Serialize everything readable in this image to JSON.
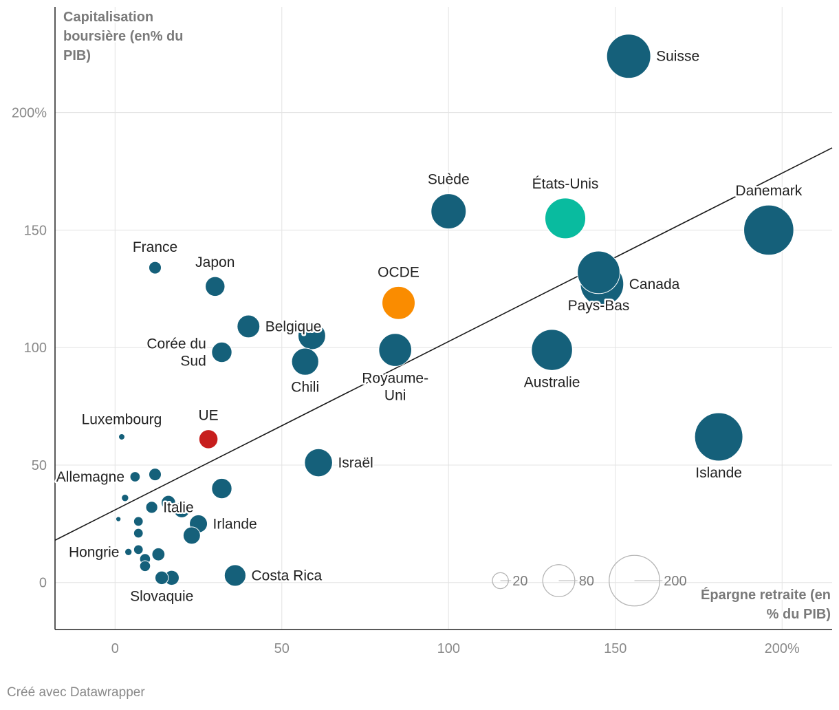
{
  "chart_data": {
    "type": "scatter",
    "subtype": "bubble",
    "ylabel": [
      "Capitalisation",
      "boursière (en% du",
      "PIB)"
    ],
    "xlabel": [
      "Épargne retraite (en",
      "% du PIB)"
    ],
    "xlim": [
      -18,
      215
    ],
    "ylim": [
      -20,
      245
    ],
    "x_ticks": [
      {
        "value": 0,
        "label": "0"
      },
      {
        "value": 50,
        "label": "50"
      },
      {
        "value": 100,
        "label": "100"
      },
      {
        "value": 150,
        "label": "150"
      },
      {
        "value": 200,
        "label": "200%"
      }
    ],
    "y_ticks": [
      {
        "value": 0,
        "label": "0"
      },
      {
        "value": 50,
        "label": "50"
      },
      {
        "value": 100,
        "label": "100"
      },
      {
        "value": 150,
        "label": "150"
      },
      {
        "value": 200,
        "label": "200%"
      }
    ],
    "size_legend": [
      {
        "value": 20,
        "label": "20"
      },
      {
        "value": 80,
        "label": "80"
      },
      {
        "value": 200,
        "label": "200"
      }
    ],
    "trendline": {
      "x": [
        -18,
        215
      ],
      "y": [
        18,
        185
      ]
    },
    "colors": {
      "default": "#15607a",
      "oecd": "#fa8c00",
      "usa": "#09bb9f",
      "eu": "#c71e1d"
    },
    "points": [
      {
        "name": "Suisse",
        "x": 154,
        "y": 224,
        "size": 151,
        "color": "default",
        "anchor": "start"
      },
      {
        "name": "Danemark",
        "x": 196,
        "y": 150,
        "size": 195,
        "color": "default",
        "anchor": "middle"
      },
      {
        "name": "Islande",
        "x": 181,
        "y": 62,
        "size": 181,
        "color": "default",
        "anchor": "middle"
      },
      {
        "name": "États-Unis",
        "x": 135,
        "y": 155,
        "size": 129,
        "color": "usa",
        "anchor": "middle"
      },
      {
        "name": "Pays-Bas",
        "x": 145,
        "y": 132,
        "size": 141,
        "color": "default",
        "anchor": "middle"
      },
      {
        "name": "Canada",
        "x": 146,
        "y": 127,
        "size": 146,
        "color": "default",
        "anchor": "start"
      },
      {
        "name": "Australie",
        "x": 131,
        "y": 99,
        "size": 131,
        "color": "default",
        "anchor": "middle"
      },
      {
        "name": "Suède",
        "x": 100,
        "y": 158,
        "size": 96,
        "color": "default",
        "anchor": "middle"
      },
      {
        "name": "OCDE",
        "x": 85,
        "y": 119,
        "size": 85,
        "color": "oecd",
        "anchor": "middle"
      },
      {
        "name": "Royaume-Uni",
        "x": 84,
        "y": 99,
        "size": 84,
        "color": "default",
        "anchor": "middle",
        "lines": [
          "Royaume-",
          "Uni"
        ]
      },
      {
        "name": "Belgique",
        "x": 40,
        "y": 109,
        "size": 40,
        "color": "default",
        "anchor": "start"
      },
      {
        "name": "",
        "x": 59,
        "y": 105,
        "size": 59,
        "color": "default"
      },
      {
        "name": "Chili",
        "x": 57,
        "y": 94,
        "size": 57,
        "color": "default",
        "anchor": "middle"
      },
      {
        "name": "Israël",
        "x": 61,
        "y": 51,
        "size": 61,
        "color": "default",
        "anchor": "start"
      },
      {
        "name": "Japon",
        "x": 30,
        "y": 126,
        "size": 30,
        "color": "default",
        "anchor": "middle"
      },
      {
        "name": "France",
        "x": 12,
        "y": 134,
        "size": 12,
        "color": "default",
        "anchor": "middle"
      },
      {
        "name": "Corée du Sud",
        "x": 32,
        "y": 98,
        "size": 32,
        "color": "default",
        "anchor": "end",
        "lines": [
          "Corée du",
          "Sud"
        ]
      },
      {
        "name": "UE",
        "x": 28,
        "y": 61,
        "size": 28,
        "color": "eu",
        "anchor": "middle"
      },
      {
        "name": "Luxembourg",
        "x": 2,
        "y": 62,
        "size": 3,
        "color": "default",
        "anchor": "middle"
      },
      {
        "name": "Allemagne",
        "x": 6,
        "y": 45,
        "size": 8,
        "color": "default",
        "anchor": "end"
      },
      {
        "name": "",
        "x": 12,
        "y": 46,
        "size": 12,
        "color": "default"
      },
      {
        "name": "",
        "x": 32,
        "y": 40,
        "size": 32,
        "color": "default"
      },
      {
        "name": "",
        "x": 3,
        "y": 36,
        "size": 4,
        "color": "default"
      },
      {
        "name": "",
        "x": 16,
        "y": 34,
        "size": 16,
        "color": "default"
      },
      {
        "name": "Italie",
        "x": 11,
        "y": 32,
        "size": 11,
        "color": "default",
        "anchor": "start"
      },
      {
        "name": "",
        "x": 20,
        "y": 31,
        "size": 20,
        "color": "default"
      },
      {
        "name": "Irlande",
        "x": 25,
        "y": 25,
        "size": 25,
        "color": "default",
        "anchor": "start"
      },
      {
        "name": "",
        "x": 1,
        "y": 27,
        "size": 2,
        "color": "default"
      },
      {
        "name": "",
        "x": 7,
        "y": 26,
        "size": 7,
        "color": "default"
      },
      {
        "name": "",
        "x": 7,
        "y": 21,
        "size": 7,
        "color": "default"
      },
      {
        "name": "",
        "x": 23,
        "y": 20,
        "size": 23,
        "color": "default"
      },
      {
        "name": "Hongrie",
        "x": 4,
        "y": 13,
        "size": 4,
        "color": "default",
        "anchor": "end"
      },
      {
        "name": "",
        "x": 7,
        "y": 14,
        "size": 7,
        "color": "default"
      },
      {
        "name": "",
        "x": 13,
        "y": 12,
        "size": 13,
        "color": "default"
      },
      {
        "name": "",
        "x": 9,
        "y": 10,
        "size": 9,
        "color": "default"
      },
      {
        "name": "",
        "x": 9,
        "y": 7,
        "size": 9,
        "color": "default"
      },
      {
        "name": "Slovaquie",
        "x": 14,
        "y": 2,
        "size": 14,
        "color": "default",
        "anchor": "middle"
      },
      {
        "name": "",
        "x": 17,
        "y": 2,
        "size": 17,
        "color": "default"
      },
      {
        "name": "Costa Rica",
        "x": 36,
        "y": 3,
        "size": 36,
        "color": "default",
        "anchor": "start"
      }
    ]
  },
  "footer": "Créé avec Datawrapper"
}
